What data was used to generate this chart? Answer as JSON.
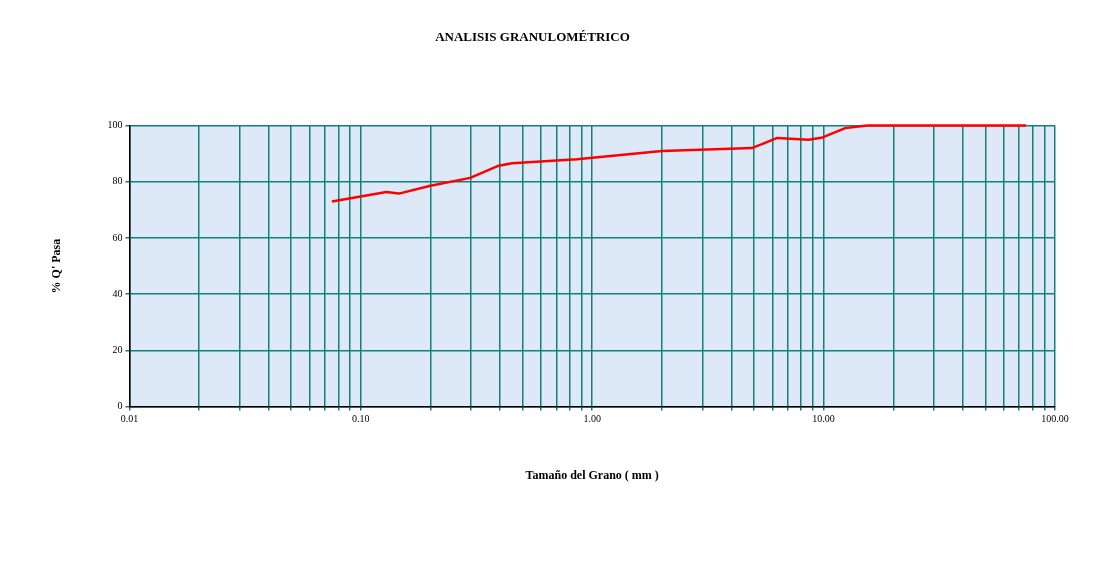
{
  "chart_data": {
    "type": "line",
    "title": "ANALISIS GRANULOMÉTRICO",
    "xlabel": "Tamaño del Grano ( mm )",
    "ylabel": "% Q' Pasa",
    "x": [
      0.075,
      0.129,
      0.146,
      0.2,
      0.297,
      0.39,
      0.45,
      0.86,
      2.0,
      4.9,
      6.3,
      8.6,
      9.9,
      12.4,
      15.5,
      75
    ],
    "series": [
      {
        "color": "#ff0000",
        "values": [
          73,
          76.4,
          75.8,
          78.6,
          81.4,
          85.6,
          86.6,
          88,
          91,
          92,
          95.6,
          95,
          95.8,
          99.1,
          100,
          100
        ]
      }
    ],
    "log": "x",
    "xlim": [
      0.01,
      100
    ],
    "ylim": [
      0,
      100
    ],
    "xticks": [
      {
        "value": 0.01,
        "label": "0.01"
      },
      {
        "value": 0.02,
        "label": null
      },
      {
        "value": 0.03,
        "label": null
      },
      {
        "value": 0.04,
        "label": null
      },
      {
        "value": 0.05,
        "label": null
      },
      {
        "value": 0.06,
        "label": null
      },
      {
        "value": 0.07,
        "label": null
      },
      {
        "value": 0.08,
        "label": null
      },
      {
        "value": 0.09,
        "label": null
      },
      {
        "value": 0.1,
        "label": "0.10"
      },
      {
        "value": 0.2,
        "label": null
      },
      {
        "value": 0.3,
        "label": null
      },
      {
        "value": 0.4,
        "label": null
      },
      {
        "value": 0.5,
        "label": null
      },
      {
        "value": 0.6,
        "label": null
      },
      {
        "value": 0.7,
        "label": null
      },
      {
        "value": 0.8,
        "label": null
      },
      {
        "value": 0.9,
        "label": null
      },
      {
        "value": 1,
        "label": "1.00"
      },
      {
        "value": 2,
        "label": null
      },
      {
        "value": 3,
        "label": null
      },
      {
        "value": 4,
        "label": null
      },
      {
        "value": 5,
        "label": null
      },
      {
        "value": 6,
        "label": null
      },
      {
        "value": 7,
        "label": null
      },
      {
        "value": 8,
        "label": null
      },
      {
        "value": 9,
        "label": null
      },
      {
        "value": 10,
        "label": "10.00"
      },
      {
        "value": 20,
        "label": null
      },
      {
        "value": 30,
        "label": null
      },
      {
        "value": 40,
        "label": null
      },
      {
        "value": 50,
        "label": null
      },
      {
        "value": 60,
        "label": null
      },
      {
        "value": 70,
        "label": null
      },
      {
        "value": 80,
        "label": null
      },
      {
        "value": 90,
        "label": null
      },
      {
        "value": 100,
        "label": "100.00"
      }
    ],
    "yticks": [
      0,
      20,
      40,
      60,
      80,
      100
    ],
    "grid": true,
    "legend": false,
    "marker": "none",
    "line_style": "solid"
  }
}
